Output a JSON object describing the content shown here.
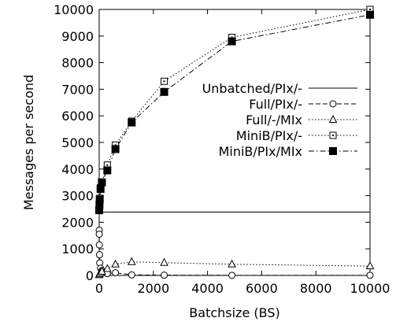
{
  "chart_data": {
    "type": "line",
    "title": "",
    "xlabel": "Batchsize (BS)",
    "ylabel": "Messages per second",
    "xlim": [
      0,
      10000
    ],
    "ylim": [
      0,
      10000
    ],
    "x_ticks": [
      "0",
      "2000",
      "4000",
      "6000",
      "8000",
      "10000"
    ],
    "y_ticks": [
      "0",
      "1000",
      "2000",
      "3000",
      "4000",
      "5000",
      "6000",
      "7000",
      "8000",
      "9000",
      "10000"
    ],
    "grid": false,
    "legend_placement": "right",
    "series": [
      {
        "name": "Unbatched/PIx/-",
        "marker": "none",
        "dash": "solid",
        "points": [
          [
            0,
            2380
          ],
          [
            10000,
            2380
          ]
        ]
      },
      {
        "name": "Full/PIx/-",
        "marker": "circle",
        "dash": "dashed",
        "points": [
          [
            1,
            1700
          ],
          [
            2,
            1550
          ],
          [
            5,
            1150
          ],
          [
            10,
            780
          ],
          [
            20,
            470
          ],
          [
            50,
            270
          ],
          [
            100,
            180
          ],
          [
            200,
            110
          ],
          [
            300,
            70
          ],
          [
            600,
            100
          ],
          [
            1200,
            20
          ],
          [
            2400,
            10
          ],
          [
            4900,
            5
          ],
          [
            10000,
            5
          ]
        ]
      },
      {
        "name": "Full/-/MIx",
        "marker": "triangle",
        "dash": "dotted",
        "points": [
          [
            1,
            20
          ],
          [
            10,
            50
          ],
          [
            50,
            100
          ],
          [
            100,
            150
          ],
          [
            300,
            250
          ],
          [
            600,
            420
          ],
          [
            1200,
            510
          ],
          [
            2400,
            480
          ],
          [
            4900,
            420
          ],
          [
            10000,
            350
          ]
        ]
      },
      {
        "name": "MiniB/PIx/-",
        "marker": "square-open",
        "dash": "dotted",
        "points": [
          [
            1,
            2500
          ],
          [
            10,
            2700
          ],
          [
            20,
            2900
          ],
          [
            50,
            3300
          ],
          [
            100,
            3500
          ],
          [
            300,
            4150
          ],
          [
            600,
            4900
          ],
          [
            1200,
            5800
          ],
          [
            2400,
            7300
          ],
          [
            4900,
            8950
          ],
          [
            10000,
            10000
          ]
        ]
      },
      {
        "name": "MiniB/PIx/MIx",
        "marker": "square-filled",
        "dash": "dashdot",
        "points": [
          [
            1,
            2450
          ],
          [
            10,
            2650
          ],
          [
            20,
            2850
          ],
          [
            50,
            3250
          ],
          [
            100,
            3500
          ],
          [
            300,
            3950
          ],
          [
            600,
            4750
          ],
          [
            1200,
            5750
          ],
          [
            2400,
            6900
          ],
          [
            4900,
            8800
          ],
          [
            10000,
            9800
          ]
        ]
      }
    ]
  }
}
